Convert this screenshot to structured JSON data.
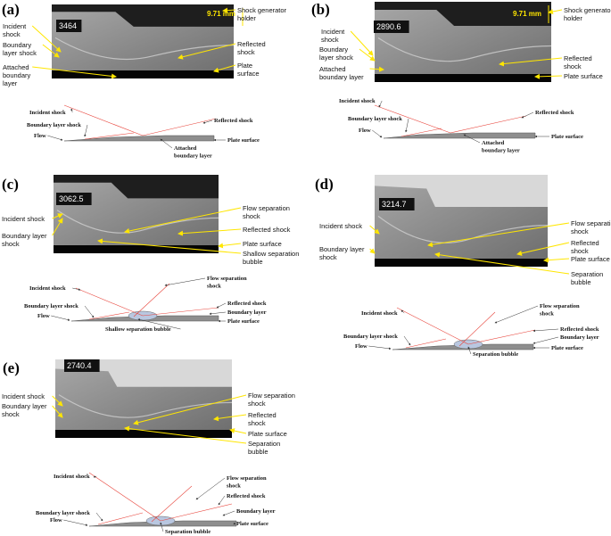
{
  "panels": [
    {
      "label": "(a)",
      "frame": "3464",
      "scale": "9.71 mm",
      "photo": [
        [
          "Shock generator",
          "holder"
        ],
        [
          "Incident",
          "shock"
        ],
        [
          "Boundary",
          "layer shock"
        ],
        [
          "Reflected",
          "shock"
        ],
        [
          "Plate",
          "surface"
        ],
        [
          "Attached",
          "boundary",
          "layer"
        ]
      ],
      "sketch": [
        [
          "Incident shock"
        ],
        [
          "Reflected shock"
        ],
        [
          "Boundary layer shock"
        ],
        [
          "Flow"
        ],
        [
          "Plate surface"
        ],
        [
          "Attached",
          "boundary layer"
        ]
      ]
    },
    {
      "label": "(b)",
      "frame": "2890.6",
      "scale": "9.71 mm",
      "photo": [
        [
          "Shock generator",
          "holder"
        ],
        [
          "Incident",
          "shock"
        ],
        [
          "Boundary",
          "layer shock"
        ],
        [
          "Attached",
          "boundary layer"
        ],
        [
          "Reflected",
          "shock"
        ],
        [
          "Plate surface"
        ]
      ],
      "sketch": [
        [
          "Incident shock"
        ],
        [
          "Reflected shock"
        ],
        [
          "Boundary layer shock"
        ],
        [
          "Flow"
        ],
        [
          "Plate surface"
        ],
        [
          "Attached",
          "boundary layer"
        ]
      ]
    },
    {
      "label": "(c)",
      "frame": "3062.5",
      "photo": [
        [
          "Incident shock"
        ],
        [
          "Boundary layer",
          "shock"
        ],
        [
          "Flow separation",
          "shock"
        ],
        [
          "Reflected shock"
        ],
        [
          "Plate surface"
        ],
        [
          "Shallow separation",
          "bubble"
        ]
      ],
      "sketch": [
        [
          "Incident shock"
        ],
        [
          "Flow separation",
          "shock"
        ],
        [
          "Reflected shock"
        ],
        [
          "Boundary layer shock"
        ],
        [
          "Boundary layer"
        ],
        [
          "Flow"
        ],
        [
          "Plate surface"
        ],
        [
          "Shallow separation bubble"
        ]
      ]
    },
    {
      "label": "(d)",
      "frame": "3214.7",
      "photo": [
        [
          "Incident shock"
        ],
        [
          "Boundary layer",
          "shock"
        ],
        [
          "Flow separation",
          "shock"
        ],
        [
          "Reflected",
          "shock"
        ],
        [
          "Plate surface"
        ],
        [
          "Separation",
          "bubble"
        ]
      ],
      "sketch": [
        [
          "Incident shock"
        ],
        [
          "Flow separation",
          "shock"
        ],
        [
          "Reflected shock"
        ],
        [
          "Boundary layer"
        ],
        [
          "Boundary layer shock"
        ],
        [
          "Flow"
        ],
        [
          "Plate surface"
        ],
        [
          "Separation bubble"
        ]
      ]
    },
    {
      "label": "(e)",
      "frame": "2740.4",
      "photo": [
        [
          "Incident shock"
        ],
        [
          "Boundary layer",
          "shock"
        ],
        [
          "Flow separation",
          "shock"
        ],
        [
          "Reflected",
          "shock"
        ],
        [
          "Plate surface"
        ],
        [
          "Separation",
          "bubble"
        ]
      ],
      "sketch": [
        [
          "Incident shock"
        ],
        [
          "Flow separation",
          "shock"
        ],
        [
          "Reflected shock"
        ],
        [
          "Boundary layer"
        ],
        [
          "Boundary layer shock"
        ],
        [
          "Flow"
        ],
        [
          "Plate surface"
        ],
        [
          "Separation bubble"
        ]
      ]
    }
  ]
}
